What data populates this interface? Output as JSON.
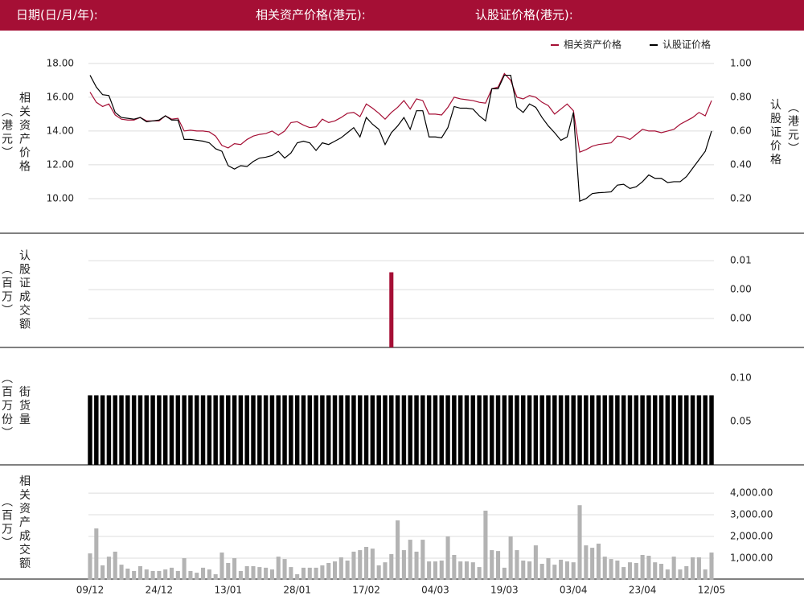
{
  "header": {
    "date_label": "日期(日/月/年):",
    "underlying_label": "相关资产价格(港元):",
    "warrant_label": "认股证价格(港元):"
  },
  "chart_data": [
    {
      "type": "line",
      "ylabel": "相关资产价格",
      "ylabel_unit": "（港元）",
      "y2label": "认股证价格",
      "y2label_unit": "（港元）",
      "y_axis_position": "left",
      "grid": true,
      "legend": "top-right",
      "ylim": [
        8,
        19.8
      ],
      "yticks": [
        {
          "value": 18,
          "label": "18.00"
        },
        {
          "value": 16,
          "label": "16.00"
        },
        {
          "value": 14,
          "label": "14.00"
        },
        {
          "value": 12,
          "label": "12.00"
        },
        {
          "value": 10,
          "label": "10.00"
        }
      ],
      "y2lim": [
        0,
        1.18
      ],
      "y2ticks": [
        {
          "value": 1,
          "label": "1.00"
        },
        {
          "value": 0.8,
          "label": "0.80"
        },
        {
          "value": 0.6,
          "label": "0.60"
        },
        {
          "value": 0.4,
          "label": "0.40"
        },
        {
          "value": 0.2,
          "label": "0.20"
        }
      ],
      "series": [
        {
          "name": "相关资产价格",
          "color": "#a50f35",
          "values": [
            16.3,
            15.7,
            15.45,
            15.6,
            14.95,
            14.7,
            14.65,
            14.65,
            14.8,
            14.6,
            14.6,
            14.6,
            14.9,
            14.7,
            14.75,
            14.0,
            14.05,
            14.0,
            14.0,
            13.95,
            13.7,
            13.15,
            13.0,
            13.25,
            13.2,
            13.5,
            13.7,
            13.8,
            13.85,
            14.0,
            13.75,
            14.0,
            14.5,
            14.55,
            14.35,
            14.2,
            14.25,
            14.7,
            14.5,
            14.6,
            14.8,
            15.05,
            15.1,
            14.85,
            15.6,
            15.35,
            15.05,
            14.7,
            15.1,
            15.4,
            15.8,
            15.3,
            15.9,
            15.8,
            15.0,
            15.0,
            14.95,
            15.4,
            16.0,
            15.9,
            15.85,
            15.8,
            15.7,
            15.65,
            16.5,
            16.6,
            17.4,
            17.0,
            16.0,
            15.9,
            16.1,
            16.0,
            15.7,
            15.5,
            15.0,
            15.3,
            15.6,
            15.2,
            12.75,
            12.9,
            13.1,
            13.2,
            13.25,
            13.3,
            13.7,
            13.65,
            13.5,
            13.8,
            14.1,
            14.0,
            14.0,
            13.9,
            14.0,
            14.1,
            14.4,
            14.6,
            14.8,
            15.1,
            14.9,
            15.8
          ]
        },
        {
          "name": "认股证价格",
          "color": "#000000",
          "axis": "y2",
          "values": [
            0.93,
            0.86,
            0.815,
            0.81,
            0.71,
            0.68,
            0.675,
            0.67,
            0.68,
            0.655,
            0.66,
            0.665,
            0.69,
            0.665,
            0.665,
            0.55,
            0.55,
            0.545,
            0.54,
            0.53,
            0.495,
            0.48,
            0.395,
            0.375,
            0.395,
            0.39,
            0.42,
            0.44,
            0.445,
            0.455,
            0.48,
            0.44,
            0.47,
            0.53,
            0.54,
            0.53,
            0.485,
            0.53,
            0.52,
            0.54,
            0.56,
            0.59,
            0.62,
            0.565,
            0.68,
            0.64,
            0.61,
            0.52,
            0.59,
            0.63,
            0.68,
            0.61,
            0.72,
            0.72,
            0.565,
            0.565,
            0.56,
            0.62,
            0.745,
            0.735,
            0.735,
            0.73,
            0.69,
            0.66,
            0.85,
            0.85,
            0.93,
            0.93,
            0.74,
            0.71,
            0.76,
            0.74,
            0.68,
            0.63,
            0.59,
            0.545,
            0.565,
            0.71,
            0.185,
            0.2,
            0.23,
            0.235,
            0.237,
            0.24,
            0.28,
            0.285,
            0.26,
            0.27,
            0.3,
            0.34,
            0.32,
            0.32,
            0.295,
            0.3,
            0.3,
            0.33,
            0.38,
            0.43,
            0.48,
            0.6
          ]
        }
      ]
    },
    {
      "type": "bar",
      "ylabel": "认股证成交额",
      "ylabel_unit": "（百万）",
      "y_axis_position": "right",
      "grid": true,
      "color": "#a50f35",
      "ylim": [
        0,
        0.0079
      ],
      "yticks": [
        {
          "value": 0.006,
          "label": "0.01"
        },
        {
          "value": 0.004,
          "label": "0.00"
        },
        {
          "value": 0.002,
          "label": "0.00"
        }
      ],
      "values": [
        0,
        0,
        0,
        0,
        0,
        0,
        0,
        0,
        0,
        0,
        0,
        0,
        0,
        0,
        0,
        0,
        0,
        0,
        0,
        0,
        0,
        0,
        0,
        0,
        0,
        0,
        0,
        0,
        0,
        0,
        0,
        0,
        0,
        0,
        0,
        0,
        0,
        0,
        0,
        0,
        0,
        0,
        0,
        0,
        0,
        0,
        0,
        0,
        0.0052,
        0,
        0,
        0,
        0,
        0,
        0,
        0,
        0,
        0,
        0,
        0,
        0,
        0,
        0,
        0,
        0,
        0,
        0,
        0,
        0,
        0,
        0,
        0,
        0,
        0,
        0,
        0,
        0,
        0,
        0,
        0,
        0,
        0,
        0,
        0,
        0,
        0,
        0,
        0,
        0,
        0,
        0,
        0,
        0,
        0,
        0,
        0,
        0,
        0,
        0,
        0
      ]
    },
    {
      "type": "bar",
      "ylabel": "街货量",
      "ylabel_unit": "（百万份）",
      "y_axis_position": "right",
      "grid": false,
      "color": "#000000",
      "ylim": [
        0,
        0.135
      ],
      "yticks": [
        {
          "value": 0.1,
          "label": "0.10"
        },
        {
          "value": 0.05,
          "label": "0.05"
        }
      ],
      "values": [
        0.08,
        0.08,
        0.08,
        0.08,
        0.08,
        0.08,
        0.08,
        0.08,
        0.08,
        0.08,
        0.08,
        0.08,
        0.08,
        0.08,
        0.08,
        0.08,
        0.08,
        0.08,
        0.08,
        0.08,
        0.08,
        0.08,
        0.08,
        0.08,
        0.08,
        0.08,
        0.08,
        0.08,
        0.08,
        0.08,
        0.08,
        0.08,
        0.08,
        0.08,
        0.08,
        0.08,
        0.08,
        0.08,
        0.08,
        0.08,
        0.08,
        0.08,
        0.08,
        0.08,
        0.08,
        0.08,
        0.08,
        0.08,
        0.08,
        0.08,
        0.08,
        0.08,
        0.08,
        0.08,
        0.08,
        0.08,
        0.08,
        0.08,
        0.08,
        0.08,
        0.08,
        0.08,
        0.08,
        0.08,
        0.08,
        0.08,
        0.08,
        0.08,
        0.08,
        0.08,
        0.08,
        0.08,
        0.08,
        0.08,
        0.08,
        0.08,
        0.08,
        0.08,
        0.08,
        0.08,
        0.08,
        0.08,
        0.08,
        0.08,
        0.08,
        0.08,
        0.08,
        0.08,
        0.08,
        0.08,
        0.08,
        0.08,
        0.08,
        0.08,
        0.08,
        0.08,
        0.08,
        0.08,
        0.08,
        0.08
      ]
    },
    {
      "type": "bar",
      "ylabel": "相关资产成交额",
      "ylabel_unit": "（百万）",
      "y_axis_position": "right",
      "grid": true,
      "color": "#b3b3b3",
      "ylim": [
        0,
        5300
      ],
      "yticks": [
        {
          "value": 4000,
          "label": "4,000.00"
        },
        {
          "value": 3000,
          "label": "3,000.00"
        },
        {
          "value": 2000,
          "label": "2,000.00"
        },
        {
          "value": 1000,
          "label": "1,000.00"
        }
      ],
      "categories": [
        "09/12",
        null,
        null,
        null,
        null,
        null,
        null,
        null,
        null,
        null,
        null,
        "24/12",
        null,
        null,
        null,
        null,
        null,
        null,
        null,
        null,
        null,
        null,
        "13/01",
        null,
        null,
        null,
        null,
        null,
        null,
        null,
        null,
        null,
        null,
        "28/01",
        null,
        null,
        null,
        null,
        null,
        null,
        null,
        null,
        null,
        null,
        "17/02",
        null,
        null,
        null,
        null,
        null,
        null,
        null,
        null,
        null,
        null,
        "04/03",
        null,
        null,
        null,
        null,
        null,
        null,
        null,
        null,
        null,
        null,
        "19/03",
        null,
        null,
        null,
        null,
        null,
        null,
        null,
        null,
        null,
        null,
        "03/04",
        null,
        null,
        null,
        null,
        null,
        null,
        null,
        null,
        null,
        null,
        "23/04",
        null,
        null,
        null,
        null,
        null,
        null,
        null,
        null,
        null,
        null,
        "12/05"
      ],
      "values": [
        1220,
        2370,
        670,
        1070,
        1300,
        700,
        520,
        410,
        630,
        480,
        410,
        410,
        480,
        560,
        410,
        1000,
        410,
        330,
        560,
        480,
        260,
        1260,
        780,
        1000,
        410,
        630,
        630,
        590,
        560,
        480,
        1070,
        960,
        590,
        260,
        560,
        560,
        560,
        670,
        780,
        850,
        1040,
        890,
        1300,
        1370,
        1520,
        1440,
        670,
        810,
        1190,
        2740,
        1370,
        1850,
        1300,
        1850,
        850,
        850,
        890,
        2000,
        1150,
        850,
        850,
        810,
        590,
        3190,
        1370,
        1330,
        560,
        2000,
        1370,
        890,
        850,
        1590,
        740,
        1000,
        700,
        930,
        850,
        810,
        3440,
        1590,
        1480,
        1670,
        1070,
        960,
        890,
        590,
        810,
        780,
        1150,
        1110,
        810,
        740,
        480,
        1070,
        480,
        630,
        1040,
        1040,
        480,
        1260
      ]
    }
  ]
}
